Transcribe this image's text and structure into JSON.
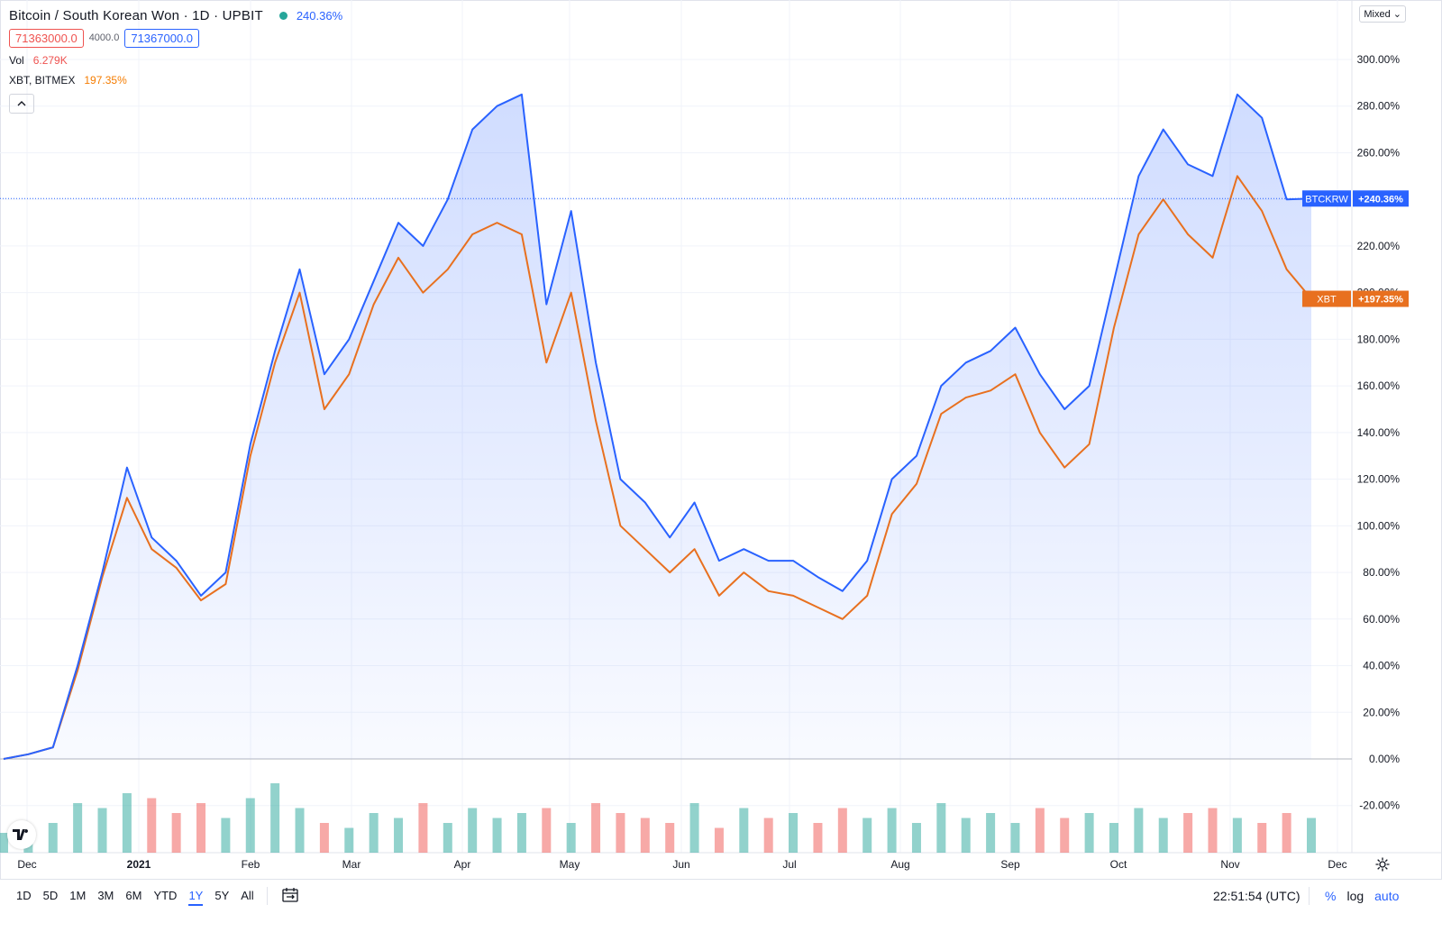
{
  "legend": {
    "symbol_title": "Bitcoin / South Korean Won · 1D · UPBIT",
    "change_pct": "240.36%",
    "bid": "71363000.0",
    "spread": "4000.0",
    "ask": "71367000.0",
    "vol_label": "Vol",
    "vol_value": "6.279K",
    "compare_label": "XBT, BITMEX",
    "compare_value": "197.35%",
    "collapse_icon": "chevron-up-icon"
  },
  "mixed_label": "Mixed",
  "bottom": {
    "ranges": [
      "1D",
      "5D",
      "1M",
      "3M",
      "6M",
      "YTD",
      "1Y",
      "5Y",
      "All"
    ],
    "active_range": "1Y",
    "clock": "22:51:54 (UTC)",
    "pct_label": "%",
    "log_label": "log",
    "auto_label": "auto"
  },
  "colors": {
    "btc": "#2962ff",
    "xbt": "#e8701f",
    "vol_up": "#26a69a",
    "vol_down": "#ef5350"
  },
  "chart_data": {
    "type": "line",
    "y_unit": "%",
    "ylim": [
      -40,
      320
    ],
    "y_ticks": [
      "300.00%",
      "280.00%",
      "260.00%",
      "240.00%",
      "220.00%",
      "200.00%",
      "180.00%",
      "160.00%",
      "140.00%",
      "120.00%",
      "100.00%",
      "80.00%",
      "60.00%",
      "40.00%",
      "20.00%",
      "0.00%",
      "-20.00%"
    ],
    "x_tick_labels": [
      "Dec",
      "2021",
      "Feb",
      "Mar",
      "Apr",
      "May",
      "Jun",
      "Jul",
      "Aug",
      "Sep",
      "Oct",
      "Nov",
      "Dec"
    ],
    "x": [
      "Nov 20",
      "Dec 1",
      "Dec 15",
      "Jan 1",
      "Jan 8",
      "Jan 15",
      "Jan 22",
      "Jan 29",
      "Feb 5",
      "Feb 12",
      "Feb 19",
      "Feb 23",
      "Mar 1",
      "Mar 7",
      "Mar 13",
      "Mar 20",
      "Mar 27",
      "Apr 3",
      "Apr 10",
      "Apr 14",
      "Apr 18",
      "Apr 25",
      "May 1",
      "May 8",
      "May 12",
      "May 19",
      "May 26",
      "Jun 1",
      "Jun 8",
      "Jun 15",
      "Jun 22",
      "Jun 29",
      "Jul 6",
      "Jul 13",
      "Jul 20",
      "Jul 27",
      "Aug 3",
      "Aug 10",
      "Aug 17",
      "Aug 24",
      "Aug 31",
      "Sep 6",
      "Sep 13",
      "Sep 20",
      "Sep 27",
      "Oct 4",
      "Oct 11",
      "Oct 18",
      "Oct 25",
      "Nov 1",
      "Nov 9",
      "Nov 14",
      "Nov 19",
      "Nov 23"
    ],
    "series": [
      {
        "name": "BTCKRW",
        "last_label": "+240.36%",
        "values": [
          0,
          2,
          5,
          40,
          80,
          125,
          95,
          85,
          70,
          80,
          135,
          175,
          210,
          165,
          180,
          205,
          230,
          220,
          240,
          270,
          280,
          285,
          195,
          235,
          170,
          120,
          110,
          95,
          110,
          85,
          90,
          85,
          85,
          78,
          72,
          85,
          120,
          130,
          160,
          170,
          175,
          185,
          165,
          150,
          160,
          205,
          250,
          270,
          255,
          250,
          285,
          275,
          240,
          240.36
        ]
      },
      {
        "name": "XBT",
        "last_label": "+197.35%",
        "values": [
          0,
          2,
          5,
          38,
          78,
          112,
          90,
          82,
          68,
          75,
          130,
          170,
          200,
          150,
          165,
          195,
          215,
          200,
          210,
          225,
          230,
          225,
          170,
          200,
          145,
          100,
          90,
          80,
          90,
          70,
          80,
          72,
          70,
          65,
          60,
          70,
          105,
          118,
          148,
          155,
          158,
          165,
          140,
          125,
          135,
          185,
          225,
          240,
          225,
          215,
          250,
          235,
          210,
          197.35
        ]
      }
    ],
    "volume_relative": [
      0.2,
      0.25,
      0.3,
      0.5,
      0.45,
      0.6,
      0.55,
      0.4,
      0.5,
      0.35,
      0.55,
      0.7,
      0.45,
      0.3,
      0.25,
      0.4,
      0.35,
      0.5,
      0.3,
      0.45,
      0.35,
      0.4,
      0.45,
      0.3,
      0.5,
      0.4,
      0.35,
      0.3,
      0.5,
      0.25,
      0.45,
      0.35,
      0.4,
      0.3,
      0.45,
      0.35,
      0.45,
      0.3,
      0.5,
      0.35,
      0.4,
      0.3,
      0.45,
      0.35,
      0.4,
      0.3,
      0.45,
      0.35,
      0.4,
      0.45,
      0.35,
      0.3,
      0.4,
      0.35
    ]
  }
}
